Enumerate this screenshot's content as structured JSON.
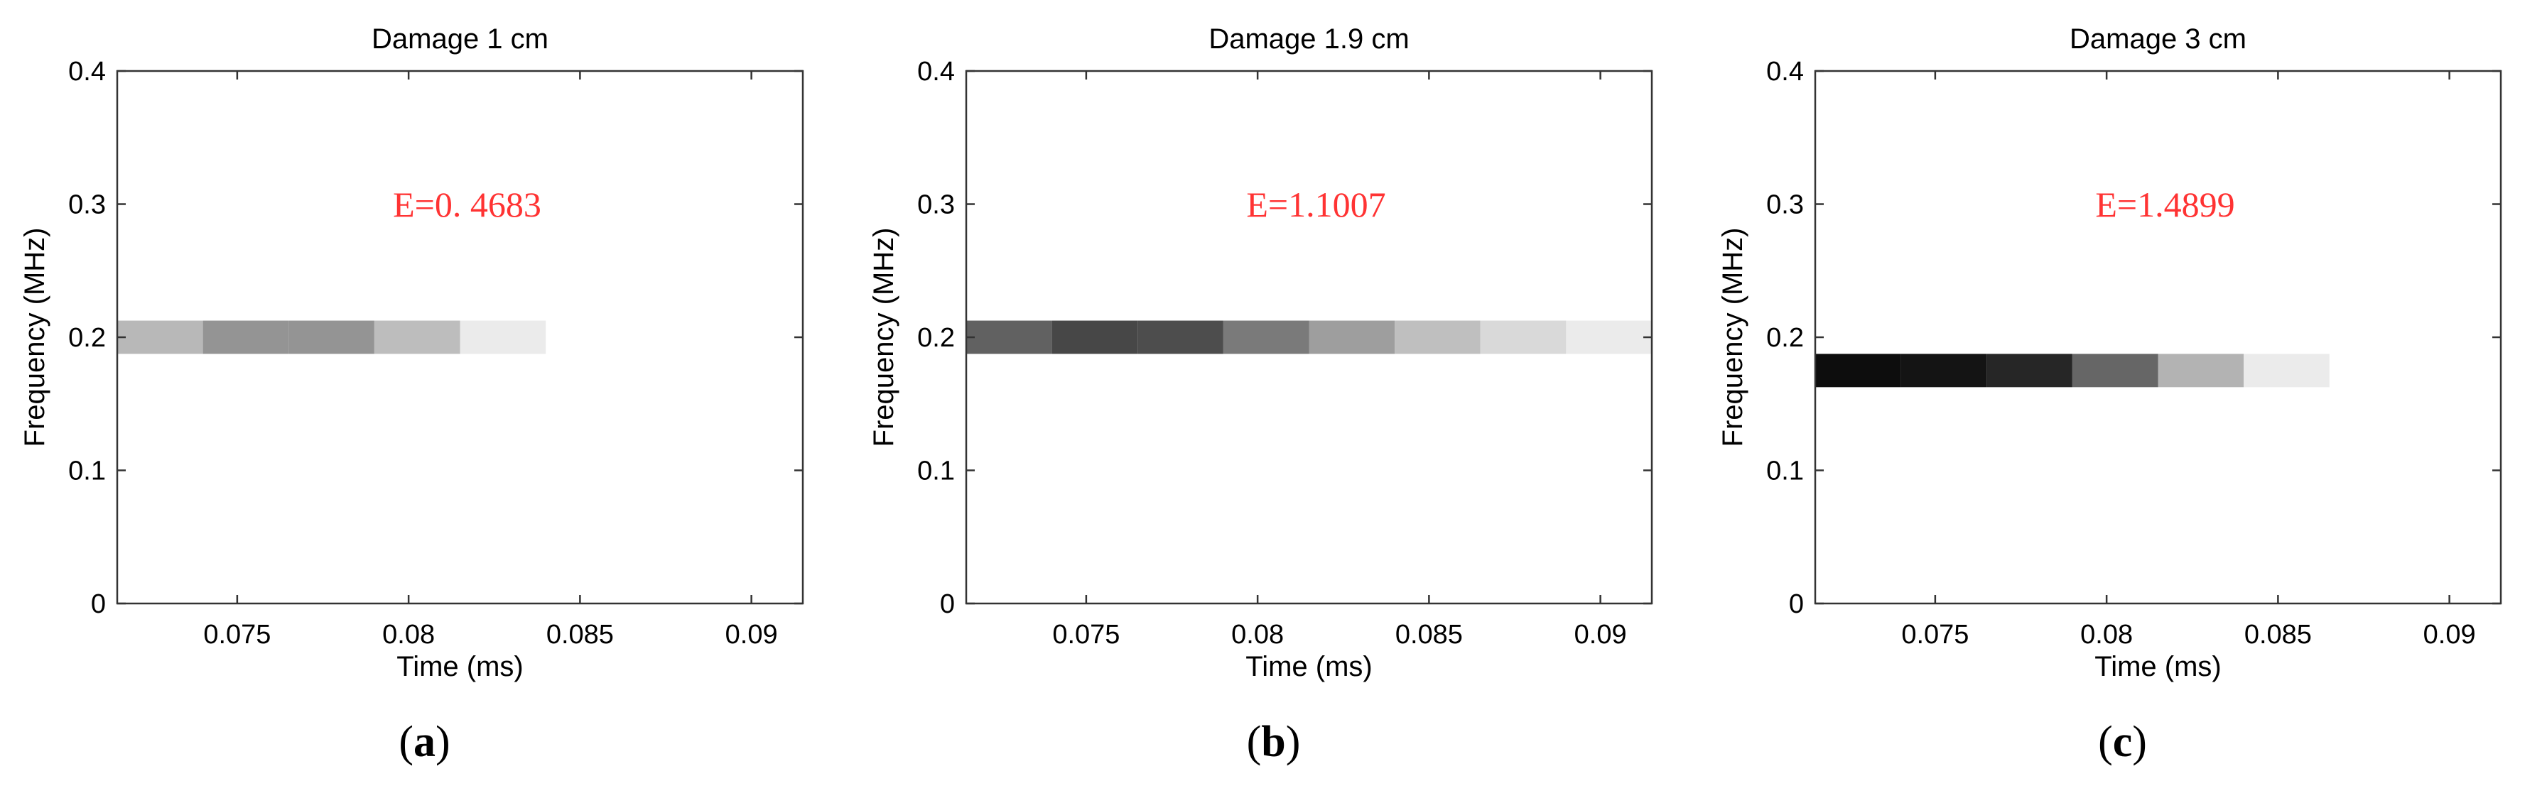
{
  "chart_data": [
    {
      "type": "heatmap",
      "panel_label": "a",
      "title": "Damage 1 cm",
      "xlabel": "Time (ms)",
      "ylabel": "Frequency (MHz)",
      "xlim": [
        0.0715,
        0.0915
      ],
      "ylim": [
        0,
        0.4
      ],
      "xticks": [
        "0.075",
        "0.08",
        "0.085",
        "0.09"
      ],
      "xtick_values": [
        0.075,
        0.08,
        0.085,
        0.09
      ],
      "yticks": [
        "0",
        "0.1",
        "0.2",
        "0.3",
        "0.4"
      ],
      "ytick_values": [
        0,
        0.1,
        0.2,
        0.3,
        0.4
      ],
      "annotation": "E=0. 4683",
      "band": {
        "frequency": 0.2,
        "bin_width": 0.025,
        "time_edges": [
          0.0715,
          0.074,
          0.0765,
          0.079,
          0.0815,
          0.084
        ],
        "intensity": [
          0.28,
          0.42,
          0.42,
          0.26,
          0.08
        ]
      }
    },
    {
      "type": "heatmap",
      "panel_label": "b",
      "title": "Damage 1.9 cm",
      "xlabel": "Time (ms)",
      "ylabel": "Frequency (MHz)",
      "xlim": [
        0.0715,
        0.0915
      ],
      "ylim": [
        0,
        0.4
      ],
      "xticks": [
        "0.075",
        "0.08",
        "0.085",
        "0.09"
      ],
      "xtick_values": [
        0.075,
        0.08,
        0.085,
        0.09
      ],
      "yticks": [
        "0",
        "0.1",
        "0.2",
        "0.3",
        "0.4"
      ],
      "ytick_values": [
        0,
        0.1,
        0.2,
        0.3,
        0.4
      ],
      "annotation": "E=1.1007",
      "band": {
        "frequency": 0.2,
        "bin_width": 0.025,
        "time_edges": [
          0.0715,
          0.074,
          0.0765,
          0.079,
          0.0815,
          0.084,
          0.0865,
          0.089,
          0.0915
        ],
        "intensity": [
          0.62,
          0.72,
          0.7,
          0.52,
          0.38,
          0.25,
          0.15,
          0.08
        ]
      }
    },
    {
      "type": "heatmap",
      "panel_label": "c",
      "title": "Damage 3 cm",
      "xlabel": "Time (ms)",
      "ylabel": "Frequency (MHz)",
      "xlim": [
        0.0715,
        0.0915
      ],
      "ylim": [
        0,
        0.4
      ],
      "xticks": [
        "0.075",
        "0.08",
        "0.085",
        "0.09"
      ],
      "xtick_values": [
        0.075,
        0.08,
        0.085,
        0.09
      ],
      "yticks": [
        "0",
        "0.1",
        "0.2",
        "0.3",
        "0.4"
      ],
      "ytick_values": [
        0,
        0.1,
        0.2,
        0.3,
        0.4
      ],
      "annotation": "E=1.4899",
      "band": {
        "frequency": 0.175,
        "bin_width": 0.025,
        "time_edges": [
          0.0715,
          0.074,
          0.0765,
          0.079,
          0.0815,
          0.084,
          0.0865
        ],
        "intensity": [
          0.95,
          0.92,
          0.85,
          0.6,
          0.3,
          0.08
        ]
      }
    }
  ]
}
